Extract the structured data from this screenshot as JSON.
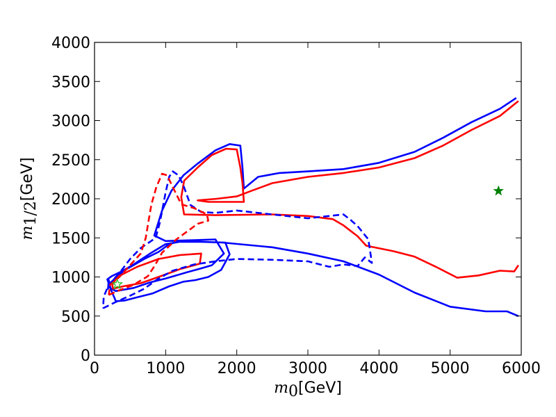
{
  "chart_data": {
    "type": "line",
    "title": "",
    "xlabel": {
      "symbol": "m",
      "subscript": "0",
      "unit": "[GeV]"
    },
    "ylabel": {
      "symbol": "m",
      "subscript": "1/2",
      "unit": "[GeV]"
    },
    "xlim": [
      0,
      6000
    ],
    "ylim": [
      0,
      4000
    ],
    "xticks": [
      0,
      1000,
      2000,
      3000,
      4000,
      5000,
      6000
    ],
    "yticks": [
      0,
      500,
      1000,
      1500,
      2000,
      2500,
      3000,
      3500,
      4000
    ],
    "xtick_labels": [
      "0",
      "1000",
      "2000",
      "3000",
      "4000",
      "5000",
      "6000"
    ],
    "ytick_labels": [
      "0",
      "500",
      "1000",
      "1500",
      "2000",
      "2500",
      "3000",
      "3500",
      "4000"
    ],
    "grid": false,
    "series": [
      {
        "name": "blue-solid-contour",
        "color": "#0000ff",
        "style": "solid",
        "points": [
          [
            5930,
            3290
          ],
          [
            5700,
            3150
          ],
          [
            5300,
            2980
          ],
          [
            4900,
            2780
          ],
          [
            4500,
            2600
          ],
          [
            4000,
            2460
          ],
          [
            3500,
            2380
          ],
          [
            3000,
            2350
          ],
          [
            2600,
            2330
          ],
          [
            2300,
            2280
          ],
          [
            2100,
            2130
          ],
          [
            2080,
            2400
          ],
          [
            2050,
            2680
          ],
          [
            1900,
            2700
          ],
          [
            1700,
            2620
          ],
          [
            1450,
            2450
          ],
          [
            1250,
            2300
          ],
          [
            1080,
            2100
          ],
          [
            950,
            1850
          ],
          [
            840,
            1530
          ],
          [
            1000,
            1460
          ],
          [
            1400,
            1470
          ],
          [
            1700,
            1480
          ],
          [
            1820,
            1300
          ],
          [
            1650,
            1150
          ],
          [
            1500,
            1110
          ],
          [
            1300,
            1060
          ],
          [
            1000,
            980
          ],
          [
            780,
            930
          ],
          [
            550,
            860
          ],
          [
            300,
            820
          ],
          [
            220,
            860
          ],
          [
            180,
            970
          ],
          [
            240,
            1010
          ],
          [
            380,
            1070
          ],
          [
            550,
            1160
          ],
          [
            800,
            1310
          ],
          [
            1000,
            1420
          ],
          [
            1200,
            1450
          ],
          [
            1500,
            1450
          ],
          [
            1840,
            1440
          ],
          [
            1900,
            1290
          ],
          [
            1780,
            1090
          ],
          [
            1600,
            1000
          ],
          [
            1420,
            960
          ],
          [
            1250,
            940
          ],
          [
            1050,
            880
          ],
          [
            820,
            790
          ],
          [
            600,
            740
          ],
          [
            430,
            700
          ],
          [
            300,
            690
          ],
          [
            230,
            840
          ],
          [
            200,
            960
          ],
          [
            190,
            850
          ],
          [
            220,
            910
          ],
          [
            300,
            1000
          ],
          [
            450,
            1100
          ],
          [
            700,
            1230
          ],
          [
            900,
            1320
          ],
          [
            1050,
            1420
          ],
          [
            1200,
            1460
          ],
          [
            1500,
            1450
          ],
          [
            1800,
            1440
          ],
          [
            2500,
            1380
          ],
          [
            3000,
            1300
          ],
          [
            3500,
            1200
          ],
          [
            4000,
            1030
          ],
          [
            4500,
            800
          ],
          [
            5000,
            620
          ],
          [
            5500,
            560
          ],
          [
            5800,
            560
          ],
          [
            5960,
            500
          ]
        ]
      },
      {
        "name": "red-solid-contour",
        "color": "#ff0000",
        "style": "solid",
        "points": [
          [
            5960,
            3250
          ],
          [
            5700,
            3060
          ],
          [
            5300,
            2880
          ],
          [
            4900,
            2680
          ],
          [
            4500,
            2520
          ],
          [
            4000,
            2400
          ],
          [
            3500,
            2330
          ],
          [
            3000,
            2280
          ],
          [
            2500,
            2200
          ],
          [
            2200,
            2100
          ],
          [
            2000,
            2030
          ],
          [
            1720,
            2000
          ],
          [
            1450,
            1980
          ],
          [
            1600,
            1960
          ],
          [
            2100,
            1960
          ],
          [
            2080,
            2200
          ],
          [
            2050,
            2400
          ],
          [
            2000,
            2630
          ],
          [
            1850,
            2640
          ],
          [
            1650,
            2560
          ],
          [
            1450,
            2400
          ],
          [
            1260,
            2230
          ],
          [
            1220,
            2020
          ],
          [
            1260,
            1800
          ],
          [
            1700,
            1790
          ],
          [
            2500,
            1800
          ],
          [
            3000,
            1780
          ],
          [
            3350,
            1740
          ],
          [
            3500,
            1660
          ],
          [
            3700,
            1520
          ],
          [
            3820,
            1400
          ],
          [
            4200,
            1330
          ],
          [
            4500,
            1260
          ],
          [
            4800,
            1130
          ],
          [
            5100,
            990
          ],
          [
            5400,
            1020
          ],
          [
            5700,
            1080
          ],
          [
            5900,
            1070
          ],
          [
            5960,
            1150
          ]
        ]
      },
      {
        "name": "red-inner-ellipse",
        "color": "#ff0000",
        "style": "solid",
        "points": [
          [
            250,
            900
          ],
          [
            320,
            1000
          ],
          [
            600,
            1130
          ],
          [
            900,
            1230
          ],
          [
            1200,
            1280
          ],
          [
            1500,
            1300
          ],
          [
            1480,
            1170
          ],
          [
            1200,
            1100
          ],
          [
            900,
            1000
          ],
          [
            650,
            920
          ],
          [
            400,
            880
          ],
          [
            260,
            850
          ],
          [
            250,
            900
          ]
        ]
      },
      {
        "name": "blue-dashed-contour",
        "color": "#0000ff",
        "style": "dashed",
        "points": [
          [
            120,
            600
          ],
          [
            300,
            680
          ],
          [
            500,
            760
          ],
          [
            700,
            850
          ],
          [
            900,
            980
          ],
          [
            1100,
            1080
          ],
          [
            1400,
            1160
          ],
          [
            1700,
            1200
          ],
          [
            2000,
            1230
          ],
          [
            2500,
            1220
          ],
          [
            3000,
            1200
          ],
          [
            3300,
            1130
          ],
          [
            3500,
            1160
          ],
          [
            3700,
            1140
          ],
          [
            3800,
            1250
          ],
          [
            3900,
            1180
          ],
          [
            3850,
            1480
          ],
          [
            3700,
            1650
          ],
          [
            3600,
            1730
          ],
          [
            3500,
            1800
          ],
          [
            3300,
            1780
          ],
          [
            3000,
            1750
          ],
          [
            2500,
            1800
          ],
          [
            2000,
            1850
          ],
          [
            1700,
            1820
          ],
          [
            1500,
            1830
          ],
          [
            1350,
            1920
          ],
          [
            1250,
            2170
          ],
          [
            1180,
            2300
          ],
          [
            1100,
            2350
          ],
          [
            1050,
            2280
          ],
          [
            1000,
            2080
          ],
          [
            920,
            1700
          ],
          [
            860,
            1500
          ],
          [
            780,
            1450
          ],
          [
            650,
            1370
          ],
          [
            500,
            1230
          ],
          [
            350,
            1050
          ],
          [
            200,
            900
          ],
          [
            130,
            750
          ],
          [
            120,
            600
          ]
        ]
      },
      {
        "name": "red-dashed-contour",
        "color": "#ff0000",
        "style": "dashed",
        "points": [
          [
            200,
            770
          ],
          [
            350,
            830
          ],
          [
            550,
            900
          ],
          [
            750,
            1010
          ],
          [
            850,
            1150
          ],
          [
            950,
            1310
          ],
          [
            1150,
            1480
          ],
          [
            1450,
            1680
          ],
          [
            1600,
            1720
          ],
          [
            1580,
            1800
          ],
          [
            1400,
            1880
          ],
          [
            1220,
            1930
          ],
          [
            1100,
            2150
          ],
          [
            1020,
            2300
          ],
          [
            950,
            2320
          ],
          [
            870,
            2150
          ],
          [
            800,
            1930
          ],
          [
            760,
            1720
          ],
          [
            720,
            1500
          ],
          [
            650,
            1300
          ],
          [
            500,
            1150
          ],
          [
            350,
            1000
          ],
          [
            220,
            900
          ],
          [
            200,
            770
          ]
        ]
      }
    ],
    "markers": [
      {
        "name": "best-fit-star",
        "x": 5680,
        "y": 2100,
        "color": "#008000",
        "filled": true
      },
      {
        "name": "reference-star",
        "x": 320,
        "y": 905,
        "color": "#22bb22",
        "filled": false
      }
    ]
  }
}
